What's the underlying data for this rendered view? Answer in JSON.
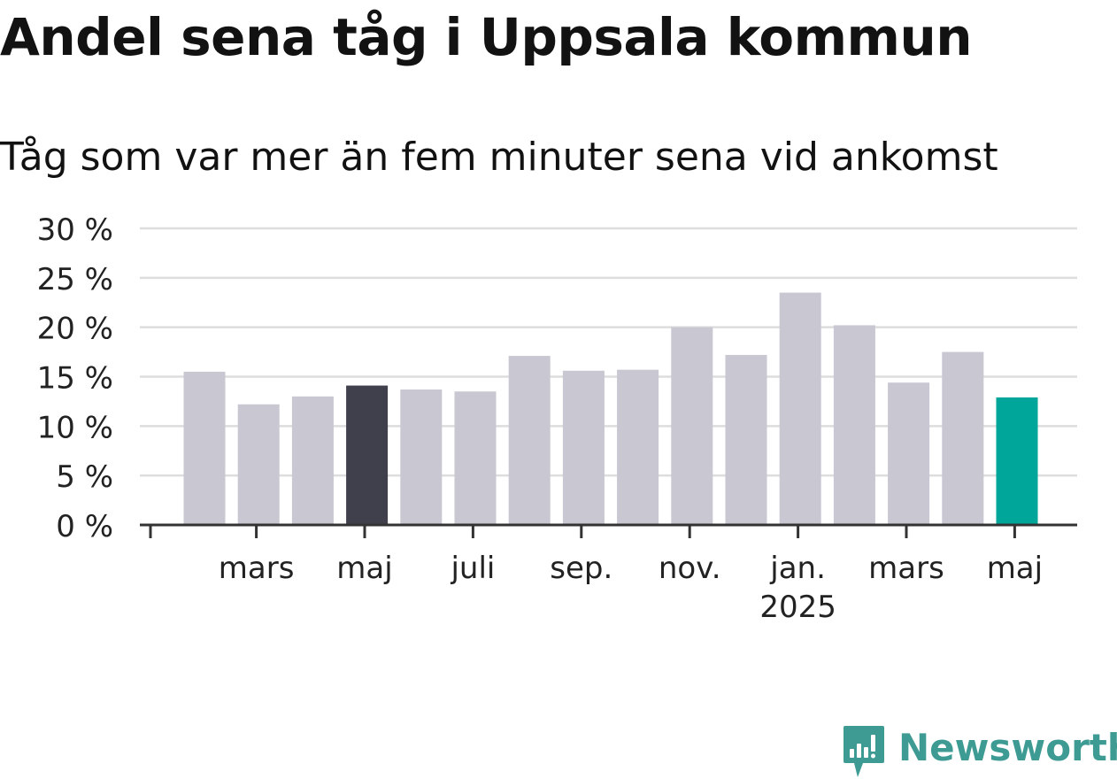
{
  "title": "Andel sena tåg i Uppsala kommun",
  "subtitle": "Tåg som var mer än fem minuter sena vid ankomst",
  "brand": {
    "name": "Newsworthy",
    "color": "#3d9b93",
    "icon": "newsworthy-logo-icon"
  },
  "colors": {
    "bar_default": "#c8c7d2",
    "bar_highlight_dark": "#403f4c",
    "bar_highlight_latest": "#00a69a",
    "grid": "#dddddd",
    "axis": "#333333"
  },
  "chart_data": {
    "type": "bar",
    "unit": "%",
    "title": "Andel sena tåg i Uppsala kommun",
    "subtitle": "Tåg som var mer än fem minuter sena vid ankomst",
    "xlabel": "",
    "ylabel": "",
    "ylim": [
      0,
      30
    ],
    "yticks": [
      0,
      5,
      10,
      15,
      20,
      25,
      30
    ],
    "ytick_labels": [
      "0 %",
      "5 %",
      "10 %",
      "15 %",
      "20 %",
      "25 %",
      "30 %"
    ],
    "grid": true,
    "legend": "none",
    "categories": [
      "2024-02",
      "2024-03",
      "2024-04",
      "2024-05",
      "2024-06",
      "2024-07",
      "2024-08",
      "2024-09",
      "2024-10",
      "2024-11",
      "2024-12",
      "2025-01",
      "2025-02",
      "2025-03",
      "2025-04",
      "2025-05"
    ],
    "values": [
      15.5,
      12.2,
      13.0,
      14.1,
      13.7,
      13.5,
      17.1,
      15.6,
      15.7,
      20.0,
      17.2,
      23.5,
      20.2,
      14.4,
      17.5,
      12.9
    ],
    "highlight": {
      "2024-05": "dark",
      "2025-05": "latest"
    },
    "xtick_labels": [
      {
        "category": "2024-03",
        "label": "mars"
      },
      {
        "category": "2024-05",
        "label": "maj"
      },
      {
        "category": "2024-07",
        "label": "juli"
      },
      {
        "category": "2024-09",
        "label": "sep."
      },
      {
        "category": "2024-11",
        "label": "nov."
      },
      {
        "category": "2025-01",
        "label": "jan.",
        "sublabel": "2025"
      },
      {
        "category": "2025-03",
        "label": "mars"
      },
      {
        "category": "2025-05",
        "label": "maj"
      }
    ]
  }
}
